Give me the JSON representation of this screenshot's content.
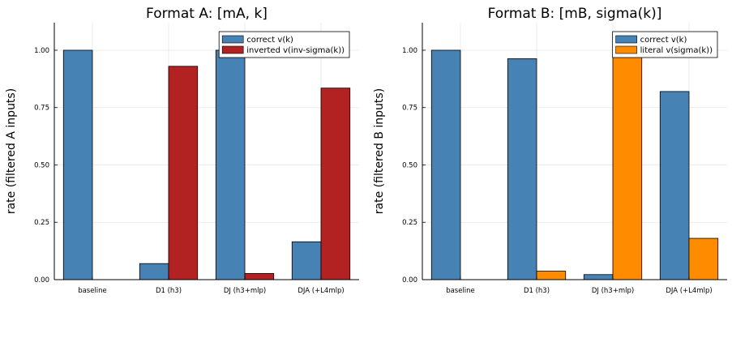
{
  "chart_data": [
    {
      "type": "bar",
      "title": "Format A: [mA, k]",
      "xlabel": "",
      "ylabel": "rate (filtered A inputs)",
      "ylim": [
        0,
        1.12
      ],
      "yticks": [
        "0.00",
        "0.25",
        "0.50",
        "0.75",
        "1.00"
      ],
      "categories": [
        "baseline",
        "D1 (h3)",
        "DJ (h3+mlp)",
        "DJA (+L4mlp)"
      ],
      "grid": true,
      "legend_position": "top-right",
      "series": [
        {
          "name": "correct v(k)",
          "color": "#4682b4",
          "values": [
            1.0,
            0.07,
            1.0,
            0.165
          ]
        },
        {
          "name": "inverted v(inv-sigma(k))",
          "color": "#b22222",
          "values": [
            0.0,
            0.93,
            0.027,
            0.835
          ]
        }
      ]
    },
    {
      "type": "bar",
      "title": "Format B: [mB, sigma(k)]",
      "xlabel": "",
      "ylabel": "rate (filtered B inputs)",
      "ylim": [
        0,
        1.12
      ],
      "yticks": [
        "0.00",
        "0.25",
        "0.50",
        "0.75",
        "1.00"
      ],
      "categories": [
        "baseline",
        "D1 (h3)",
        "DJ (h3+mlp)",
        "DJA (+L4mlp)"
      ],
      "grid": true,
      "legend_position": "top-right",
      "series": [
        {
          "name": "correct v(k)",
          "color": "#4682b4",
          "values": [
            1.0,
            0.963,
            0.022,
            0.82
          ]
        },
        {
          "name": "literal v(sigma(k))",
          "color": "#ff8c00",
          "values": [
            0.0,
            0.037,
            0.978,
            0.18
          ]
        }
      ]
    }
  ]
}
